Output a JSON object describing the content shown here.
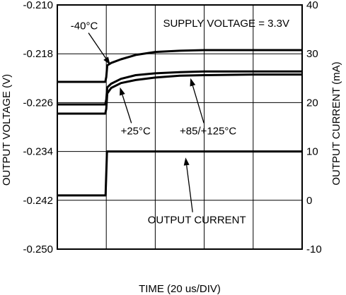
{
  "chart_data": {
    "type": "line",
    "title": "",
    "xlabel": "TIME (20 us/DIV)",
    "ylabel_left": "OUTPUT VOLTAGE (V)",
    "ylabel_right": "OUTPUT CURRENT (mA)",
    "x_divisions": 5,
    "grid": true,
    "left_axis": {
      "ylim": [
        -0.25,
        -0.21
      ],
      "ticks": [
        -0.21,
        -0.218,
        -0.226,
        -0.234,
        -0.242,
        -0.25
      ],
      "tick_labels": [
        "-0.210",
        "-0.218",
        "-0.226",
        "-0.234",
        "-0.242",
        "-0.250"
      ]
    },
    "right_axis": {
      "ylim": [
        -10,
        40
      ],
      "ticks": [
        40,
        30,
        20,
        10,
        0,
        -10
      ],
      "tick_labels": [
        "40",
        "30",
        "20",
        "10",
        "0",
        "-10"
      ]
    },
    "series": [
      {
        "axis": "left",
        "x": [
          0,
          0.98,
          1.0,
          1.02,
          1.1,
          1.3,
          1.6,
          2.0,
          2.5,
          3.0,
          4.0,
          5.0
        ],
        "y": [
          -0.2226,
          -0.2226,
          -0.2218,
          -0.2199,
          -0.2195,
          -0.2189,
          -0.2182,
          -0.2177,
          -0.2175,
          -0.2174,
          -0.2174,
          -0.2174
        ]
      },
      {
        "axis": "left",
        "x": [
          0,
          0.98,
          1.0,
          1.02,
          1.1,
          1.3,
          1.6,
          2.0,
          2.5,
          3.0,
          4.0,
          5.0
        ],
        "y": [
          -0.2263,
          -0.2263,
          -0.2255,
          -0.2235,
          -0.2229,
          -0.2221,
          -0.2215,
          -0.2212,
          -0.221,
          -0.2209,
          -0.2209,
          -0.2209
        ]
      },
      {
        "axis": "left",
        "x": [
          0,
          0.98,
          1.0,
          1.02,
          1.1,
          1.3,
          1.6,
          2.0,
          2.5,
          3.0,
          4.0,
          5.0
        ],
        "y": [
          -0.2278,
          -0.2278,
          -0.227,
          -0.2245,
          -0.2236,
          -0.2228,
          -0.2223,
          -0.2219,
          -0.2216,
          -0.2215,
          -0.2214,
          -0.2214
        ]
      },
      {
        "axis": "right",
        "x": [
          0,
          0.985,
          1.015,
          5.0
        ],
        "y": [
          1,
          1,
          10,
          10
        ]
      }
    ],
    "annotations": [
      {
        "text": "SUPPLY VOLTAGE = 3.3V",
        "x": 3.45,
        "y": -0.2136,
        "axis": "left"
      },
      {
        "text": "-40°C",
        "x": 0.55,
        "y": -0.214,
        "axis": "left",
        "arrow_to": [
          1.08,
          -0.2198
        ]
      },
      {
        "text": "+25°C",
        "x": 1.6,
        "y": -0.2312,
        "axis": "left",
        "arrow_to": [
          1.28,
          -0.2235
        ]
      },
      {
        "text": "+85/+125°C",
        "x": 3.08,
        "y": -0.2312,
        "axis": "left",
        "arrow_to": [
          2.72,
          -0.222
        ]
      },
      {
        "text": "OUTPUT CURRENT",
        "x": 2.85,
        "y": -0.2458,
        "axis": "left",
        "arrow_to": [
          2.62,
          -0.235
        ]
      }
    ]
  }
}
